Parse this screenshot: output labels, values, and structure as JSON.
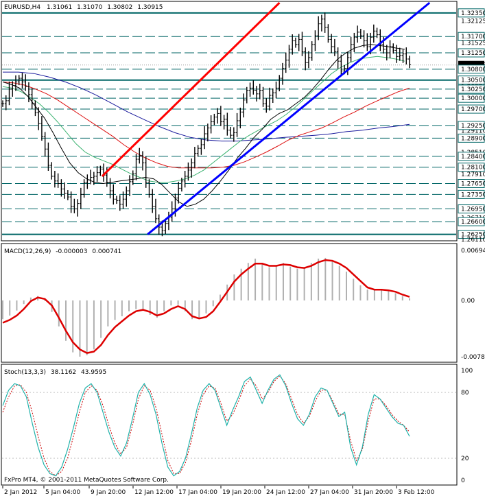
{
  "header": {
    "symbol": "EURUSD,H4",
    "open": "1.31061",
    "high": "1.31070",
    "low": "1.30802",
    "close": "1.30915"
  },
  "macd_header": {
    "name": "MACD(12,26,9)",
    "v1": "-0.000003",
    "v2": "0.000741"
  },
  "stoch_header": {
    "name": "Stoch(13,3,3)",
    "v1": "38.1162",
    "v2": "43.9595"
  },
  "watermark": "FxPro MT4, © 2001-2011 MetaQuotes Software Corp.",
  "colors": {
    "price_bar": "#000000",
    "ma_black": "#000000",
    "ma_green": "#3cb371",
    "ma_red": "#dd1111",
    "ma_blue": "#1a1a9c",
    "trend_red": "#ff0000",
    "trend_blue": "#0000ff",
    "level_line": "#006666",
    "macd_signal": "#dd0000",
    "macd_hist": "#b0b0b0",
    "stoch_main": "#20b2aa",
    "stoch_signal": "#cc0000"
  },
  "chart_data": [
    {
      "type": "candlestick",
      "title": "EURUSD,H4",
      "x_ticks": [
        "2 Jan 2012",
        "5 Jan 04:00",
        "9 Jan 20:00",
        "12 Jan 12:00",
        "17 Jan 04:00",
        "19 Jan 20:00",
        "24 Jan 12:00",
        "27 Jan 04:00",
        "31 Jan 20:00",
        "3 Feb 12:00"
      ],
      "ylim": [
        1.2611,
        1.3263
      ],
      "y_levels_labels": [
        "1.32350",
        "1.32125",
        "1.31700",
        "1.31525",
        "1.31250",
        "1.30915",
        "1.30800",
        "1.30500",
        "1.30320",
        "1.30250",
        "1.30000",
        "1.29700",
        "1.29110",
        "1.29250",
        "1.28900",
        "1.28510",
        "1.28400",
        "1.28100",
        "1.27910",
        "1.27650",
        "1.27350",
        "1.26950",
        "1.26710",
        "1.26600",
        "1.26250",
        "1.26110"
      ],
      "horizontal_levels": [
        1.3235,
        1.317,
        1.3125,
        1.308,
        1.305,
        1.3025,
        1.3,
        1.297,
        1.2925,
        1.289,
        1.284,
        1.281,
        1.2765,
        1.2735,
        1.2695,
        1.266,
        1.2625
      ],
      "current_price": 1.30915,
      "close_path": [
        1.2985,
        1.2993,
        1.3025,
        1.3035,
        1.3045,
        1.3055,
        1.3045,
        1.3032,
        1.301,
        1.2985,
        1.296,
        1.293,
        1.2895,
        1.286,
        1.2815,
        1.2785,
        1.2772,
        1.2765,
        1.275,
        1.2738,
        1.2728,
        1.2702,
        1.2695,
        1.271,
        1.2735,
        1.2768,
        1.2775,
        1.2782,
        1.2785,
        1.2795,
        1.2805,
        1.2788,
        1.2768,
        1.2745,
        1.2722,
        1.2718,
        1.2708,
        1.2722,
        1.2745,
        1.277,
        1.2792,
        1.2832,
        1.2842,
        1.2822,
        1.2768,
        1.2735,
        1.2702,
        1.2668,
        1.2645,
        1.2635,
        1.2655,
        1.2672,
        1.2695,
        1.2725,
        1.2752,
        1.2772,
        1.2785,
        1.2802,
        1.2822,
        1.2848,
        1.2862,
        1.2872,
        1.2902,
        1.2918,
        1.2935,
        1.2948,
        1.2958,
        1.2935,
        1.2942,
        1.2912,
        1.2898,
        1.2905,
        1.2938,
        1.2962,
        1.2995,
        1.3022,
        1.3028,
        1.3022,
        1.3012,
        1.3022,
        1.2985,
        1.2978,
        1.3008,
        1.3015,
        1.3028,
        1.3055,
        1.3082,
        1.3105,
        1.3135,
        1.3158,
        1.3148,
        1.3162,
        1.3128,
        1.3098,
        1.3112,
        1.3148,
        1.3172,
        1.3205,
        1.3218,
        1.3195,
        1.3162,
        1.3142,
        1.3128,
        1.3102,
        1.3075,
        1.3082,
        1.3112,
        1.3148,
        1.3168,
        1.3182,
        1.3172,
        1.3158,
        1.3142,
        1.3168,
        1.3185,
        1.3175,
        1.3148,
        1.3135,
        1.3125,
        1.3142,
        1.3132,
        1.3115,
        1.3118,
        1.3122,
        1.3108,
        1.3092
      ],
      "ma_black": [
        1.3045,
        1.3038,
        1.3028,
        1.3005,
        1.2975,
        1.2945,
        1.2905,
        1.2862,
        1.2822,
        1.2795,
        1.2778,
        1.2768,
        1.2765,
        1.2768,
        1.2772,
        1.2775,
        1.2778,
        1.2782,
        1.2778,
        1.2762,
        1.2738,
        1.2715,
        1.2702,
        1.2708,
        1.2722,
        1.2745,
        1.2772,
        1.2802,
        1.2835,
        1.2862,
        1.2892,
        1.2915,
        1.2942,
        1.2958,
        1.2968,
        1.2985,
        1.3002,
        1.3025,
        1.3052,
        1.3082,
        1.3108,
        1.3125,
        1.3138,
        1.3145,
        1.3148,
        1.3145,
        1.3142,
        1.3138,
        1.3135
      ],
      "ma_green": [
        1.3032,
        1.3028,
        1.3018,
        1.3002,
        1.2985,
        1.2962,
        1.2935,
        1.2905,
        1.2875,
        1.2852,
        1.2838,
        1.2828,
        1.2818,
        1.2805,
        1.2792,
        1.2782,
        1.2772,
        1.2768,
        1.2768,
        1.2772,
        1.2778,
        1.2788,
        1.2802,
        1.2822,
        1.2842,
        1.2862,
        1.2882,
        1.2898,
        1.2912,
        1.2925,
        1.2938,
        1.2955,
        1.2975,
        1.2998,
        1.3022,
        1.3045,
        1.3068,
        1.3085,
        1.3098,
        1.3108,
        1.3112,
        1.3115,
        1.3112,
        1.3108,
        1.3102
      ],
      "ma_red": [
        1.3045,
        1.3042,
        1.3036,
        1.3025,
        1.3012,
        1.2995,
        1.2975,
        1.2955,
        1.2935,
        1.2915,
        1.2895,
        1.2872,
        1.2852,
        1.2835,
        1.2822,
        1.2812,
        1.2808,
        1.2808,
        1.2808,
        1.2808,
        1.281,
        1.2815,
        1.2825,
        1.2838,
        1.2852,
        1.2868,
        1.2885,
        1.2898,
        1.2908,
        1.2918,
        1.2932,
        1.2948,
        1.2962,
        1.2978,
        1.2992,
        1.3005,
        1.3018,
        1.3028
      ],
      "ma_blue": [
        1.3072,
        1.3072,
        1.3068,
        1.3058,
        1.3045,
        1.3028,
        1.3008,
        1.2985,
        1.2962,
        1.2942,
        1.2922,
        1.2905,
        1.2892,
        1.2885,
        1.2882,
        1.2882,
        1.2885,
        1.2888,
        1.2892,
        1.2895,
        1.2898,
        1.2902,
        1.2908,
        1.2912,
        1.2918,
        1.2922,
        1.2928
      ],
      "trendline_red": [
        [
          0.22,
          1.2785
        ],
        [
          0.61,
          1.3263
        ]
      ],
      "trendline_blue": [
        [
          0.32,
          1.2625
        ],
        [
          0.94,
          1.3263
        ]
      ]
    },
    {
      "type": "line",
      "title": "MACD(12,26,9)",
      "y_ticks": [
        "0.00694",
        "0.00",
        "-0.00781"
      ],
      "ylim": [
        -0.00781,
        0.00694
      ],
      "signal": [
        -0.0031,
        -0.0027,
        -0.0021,
        -0.0012,
        -0.0001,
        0.0004,
        0.0002,
        -0.0007,
        -0.0024,
        -0.0042,
        -0.0058,
        -0.0068,
        -0.0073,
        -0.0071,
        -0.0062,
        -0.0048,
        -0.0037,
        -0.0029,
        -0.0021,
        -0.0015,
        -0.0013,
        -0.0016,
        -0.0021,
        -0.0018,
        -0.0012,
        -0.0008,
        -0.0012,
        -0.0022,
        -0.0025,
        -0.0023,
        -0.0015,
        -0.0002,
        0.0012,
        0.0026,
        0.0036,
        0.0044,
        0.0051,
        0.0051,
        0.0048,
        0.0048,
        0.005,
        0.0049,
        0.0046,
        0.0045,
        0.0048,
        0.0053,
        0.0056,
        0.0055,
        0.0051,
        0.0045,
        0.0036,
        0.0027,
        0.0018,
        0.0015,
        0.0015,
        0.0014,
        0.0012,
        0.0008,
        0.0005
      ],
      "histogram": [
        -0.0026,
        -0.0021,
        -0.0014,
        -0.0005,
        0.0004,
        0.0006,
        -0.0001,
        -0.0016,
        -0.0036,
        -0.0056,
        -0.0072,
        -0.0078,
        -0.0076,
        -0.0068,
        -0.0052,
        -0.0036,
        -0.0027,
        -0.0022,
        -0.0015,
        -0.0012,
        -0.0014,
        -0.002,
        -0.0024,
        -0.0015,
        -0.0007,
        -0.0006,
        -0.0015,
        -0.0026,
        -0.0024,
        -0.0018,
        -0.0008,
        0.0008,
        0.0022,
        0.0036,
        0.0044,
        0.0052,
        0.0058,
        0.0052,
        0.0046,
        0.0048,
        0.0052,
        0.0047,
        0.0044,
        0.0046,
        0.0052,
        0.0058,
        0.0059,
        0.0055,
        0.0048,
        0.004,
        0.003,
        0.0021,
        0.0015,
        0.0016,
        0.0016,
        0.0013,
        0.001,
        0.0006,
        0.0003
      ]
    },
    {
      "type": "line",
      "title": "Stoch(13,3,3)",
      "y_ticks": [
        "100",
        "80",
        "20",
        "0"
      ],
      "ylim": [
        0,
        100
      ],
      "main": [
        68,
        82,
        88,
        86,
        76,
        52,
        30,
        14,
        6,
        4,
        12,
        28,
        48,
        70,
        84,
        88,
        80,
        62,
        44,
        30,
        22,
        34,
        56,
        80,
        88,
        78,
        60,
        34,
        12,
        4,
        8,
        20,
        42,
        66,
        82,
        88,
        82,
        66,
        50,
        64,
        76,
        90,
        94,
        82,
        70,
        82,
        92,
        96,
        86,
        70,
        56,
        50,
        60,
        76,
        84,
        82,
        70,
        58,
        62,
        30,
        14,
        30,
        60,
        78,
        74,
        66,
        58,
        52,
        50,
        40
      ],
      "signal": [
        62,
        76,
        86,
        87,
        80,
        62,
        40,
        20,
        8,
        4,
        8,
        20,
        40,
        62,
        80,
        86,
        82,
        68,
        50,
        34,
        24,
        30,
        50,
        74,
        86,
        82,
        66,
        42,
        18,
        6,
        6,
        16,
        36,
        60,
        78,
        86,
        84,
        70,
        54,
        60,
        72,
        86,
        92,
        86,
        74,
        80,
        90,
        95,
        88,
        74,
        60,
        52,
        58,
        72,
        82,
        82,
        72,
        60,
        60,
        36,
        18,
        28,
        54,
        74,
        74,
        68,
        60,
        54,
        50,
        44
      ]
    }
  ]
}
